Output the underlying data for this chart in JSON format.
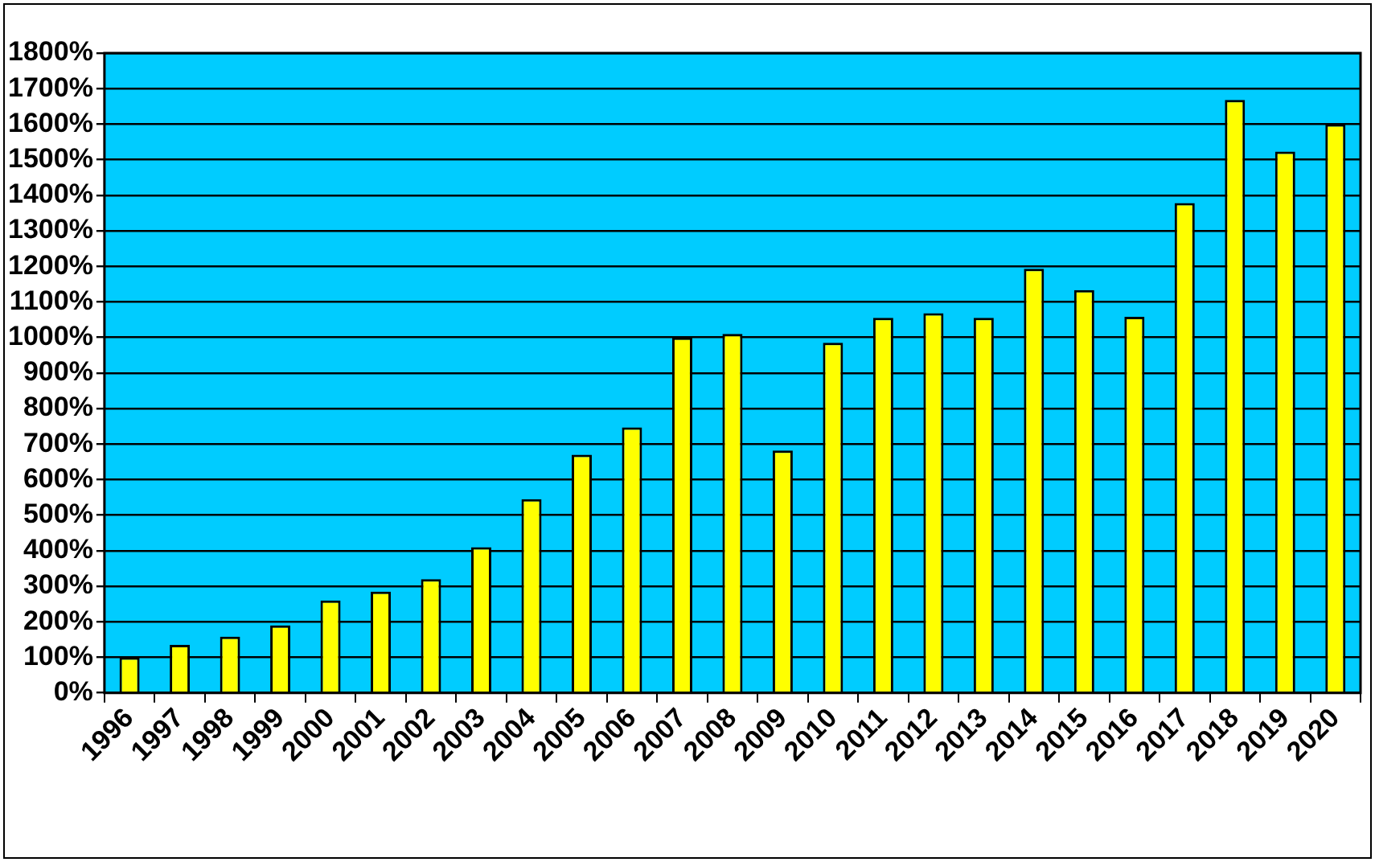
{
  "chart_data": {
    "type": "bar",
    "categories": [
      "1996",
      "1997",
      "1998",
      "1999",
      "2000",
      "2001",
      "2002",
      "2003",
      "2004",
      "2005",
      "2006",
      "2007",
      "2008",
      "2009",
      "2010",
      "2011",
      "2012",
      "2013",
      "2014",
      "2015",
      "2016",
      "2017",
      "2018",
      "2019",
      "2020"
    ],
    "values": [
      100,
      135,
      158,
      190,
      260,
      285,
      320,
      410,
      545,
      670,
      747,
      1000,
      1010,
      682,
      985,
      1055,
      1068,
      1055,
      1193,
      1133,
      1058,
      1378,
      1668,
      1523,
      1600
    ],
    "color": "#ffff00",
    "ylim": [
      0,
      1800
    ],
    "yticks": [
      {
        "value": 0,
        "label": "0%"
      },
      {
        "value": 100,
        "label": "100%"
      },
      {
        "value": 200,
        "label": "200%"
      },
      {
        "value": 300,
        "label": "300%"
      },
      {
        "value": 400,
        "label": "400%"
      },
      {
        "value": 500,
        "label": "500%"
      },
      {
        "value": 600,
        "label": "600%"
      },
      {
        "value": 700,
        "label": "700%"
      },
      {
        "value": 800,
        "label": "800%"
      },
      {
        "value": 900,
        "label": "900%"
      },
      {
        "value": 1000,
        "label": "1000%"
      },
      {
        "value": 1100,
        "label": "1100%"
      },
      {
        "value": 1200,
        "label": "1200%"
      },
      {
        "value": 1300,
        "label": "1300%"
      },
      {
        "value": 1400,
        "label": "1400%"
      },
      {
        "value": 1500,
        "label": "1500%"
      },
      {
        "value": 1600,
        "label": "1600%"
      },
      {
        "value": 1700,
        "label": "1700%"
      },
      {
        "value": 1800,
        "label": "1800%"
      }
    ],
    "grid": "y",
    "legend": false
  }
}
